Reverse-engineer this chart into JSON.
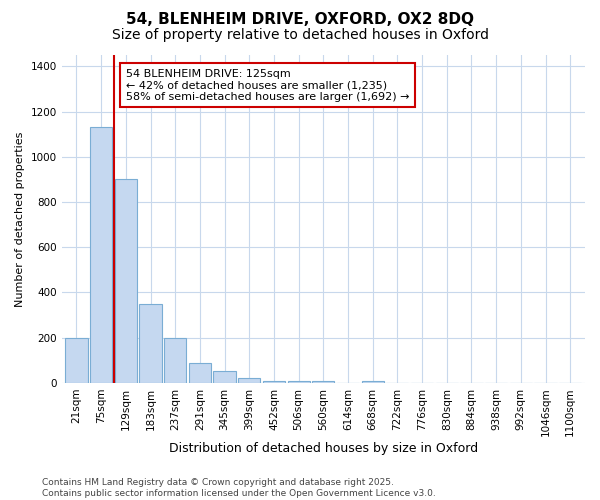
{
  "title_line1": "54, BLENHEIM DRIVE, OXFORD, OX2 8DQ",
  "title_line2": "Size of property relative to detached houses in Oxford",
  "xlabel": "Distribution of detached houses by size in Oxford",
  "ylabel": "Number of detached properties",
  "categories": [
    "21sqm",
    "75sqm",
    "129sqm",
    "183sqm",
    "237sqm",
    "291sqm",
    "345sqm",
    "399sqm",
    "452sqm",
    "506sqm",
    "560sqm",
    "614sqm",
    "668sqm",
    "722sqm",
    "776sqm",
    "830sqm",
    "884sqm",
    "938sqm",
    "992sqm",
    "1046sqm",
    "1100sqm"
  ],
  "values": [
    200,
    1130,
    900,
    350,
    200,
    90,
    55,
    20,
    10,
    10,
    10,
    0,
    10,
    0,
    0,
    0,
    0,
    0,
    0,
    0,
    0
  ],
  "bar_color": "#c5d8f0",
  "bar_edgecolor": "#7aadd4",
  "bar_linewidth": 0.8,
  "redline_index": 1.5,
  "redline_color": "#cc0000",
  "annotation_text": "54 BLENHEIM DRIVE: 125sqm\n← 42% of detached houses are smaller (1,235)\n58% of semi-detached houses are larger (1,692) →",
  "annotation_box_edgecolor": "#cc0000",
  "annotation_box_facecolor": "#ffffff",
  "annotation_fontsize": 8,
  "background_color": "#ffffff",
  "plot_background": "#ffffff",
  "grid_color": "#c8d8ec",
  "ylim": [
    0,
    1450
  ],
  "yticks": [
    0,
    200,
    400,
    600,
    800,
    1000,
    1200,
    1400
  ],
  "footnote": "Contains HM Land Registry data © Crown copyright and database right 2025.\nContains public sector information licensed under the Open Government Licence v3.0.",
  "footnote_fontsize": 6.5,
  "title_fontsize1": 11,
  "title_fontsize2": 10,
  "xlabel_fontsize": 9,
  "ylabel_fontsize": 8,
  "tick_fontsize": 7.5
}
